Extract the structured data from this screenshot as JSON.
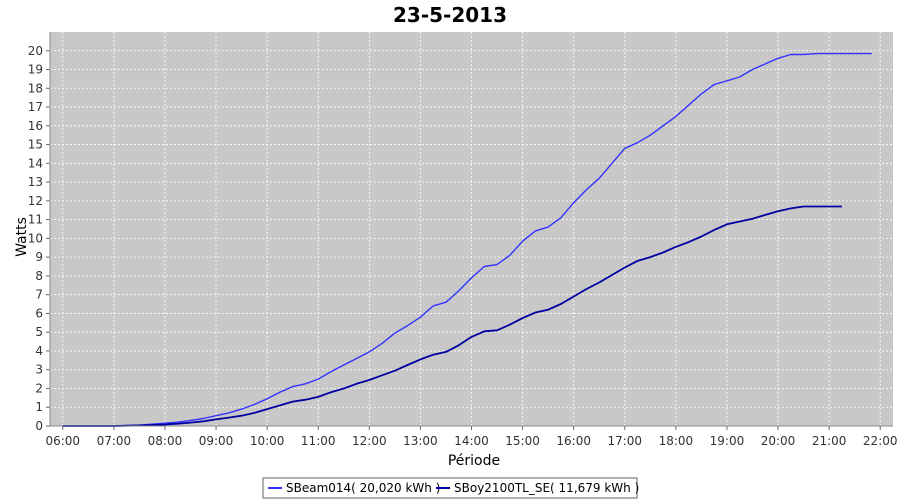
{
  "chart_data": {
    "type": "line",
    "title": "23-5-2013",
    "xlabel": "Période",
    "ylabel": "Watts",
    "ylim": [
      0,
      21
    ],
    "xlim": [
      "05:45",
      "22:15"
    ],
    "x_ticks": [
      "06:00",
      "07:00",
      "08:00",
      "09:00",
      "10:00",
      "11:00",
      "12:00",
      "13:00",
      "14:00",
      "15:00",
      "16:00",
      "17:00",
      "18:00",
      "19:00",
      "20:00",
      "21:00",
      "22:00"
    ],
    "y_ticks": [
      0,
      1,
      2,
      3,
      4,
      5,
      6,
      7,
      8,
      9,
      10,
      11,
      12,
      13,
      14,
      15,
      16,
      17,
      18,
      19,
      20
    ],
    "grid": true,
    "plot_background": "#c8c8c8",
    "legend_position": "bottom",
    "series": [
      {
        "name": "SBeam014( 20,020 kWh )",
        "color": "#3333ff",
        "x": [
          "06:00",
          "06:30",
          "07:00",
          "07:30",
          "08:00",
          "08:15",
          "08:30",
          "08:45",
          "09:00",
          "09:15",
          "09:30",
          "09:45",
          "10:00",
          "10:15",
          "10:30",
          "10:45",
          "11:00",
          "11:15",
          "11:30",
          "11:45",
          "12:00",
          "12:15",
          "12:30",
          "12:45",
          "13:00",
          "13:15",
          "13:30",
          "13:45",
          "14:00",
          "14:15",
          "14:30",
          "14:45",
          "15:00",
          "15:15",
          "15:30",
          "15:45",
          "16:00",
          "16:15",
          "16:30",
          "16:45",
          "17:00",
          "17:15",
          "17:30",
          "17:45",
          "18:00",
          "18:15",
          "18:30",
          "18:45",
          "19:00",
          "19:15",
          "19:30",
          "19:45",
          "20:00",
          "20:15",
          "20:30",
          "20:45",
          "21:00",
          "21:15",
          "21:30",
          "21:45",
          "21:50"
        ],
        "values": [
          0,
          0,
          0,
          0.05,
          0.15,
          0.2,
          0.3,
          0.4,
          0.55,
          0.7,
          0.9,
          1.15,
          1.45,
          1.8,
          2.1,
          2.25,
          2.5,
          2.9,
          3.25,
          3.6,
          3.95,
          4.4,
          4.95,
          5.35,
          5.8,
          6.4,
          6.6,
          7.2,
          7.9,
          8.5,
          8.6,
          9.1,
          9.85,
          10.4,
          10.6,
          11.1,
          11.9,
          12.6,
          13.2,
          14.0,
          14.8,
          15.1,
          15.5,
          16.0,
          16.5,
          17.1,
          17.7,
          18.2,
          18.4,
          18.6,
          19.0,
          19.3,
          19.6,
          19.8,
          19.8,
          19.85,
          19.85,
          19.85,
          19.85,
          19.85,
          19.85
        ]
      },
      {
        "name": "SBoy2100TL_SE( 11,679 kWh )",
        "color": "#0000a0",
        "x": [
          "06:00",
          "06:30",
          "07:00",
          "07:30",
          "08:00",
          "08:15",
          "08:30",
          "08:45",
          "09:00",
          "09:15",
          "09:30",
          "09:45",
          "10:00",
          "10:15",
          "10:30",
          "10:45",
          "11:00",
          "11:15",
          "11:30",
          "11:45",
          "12:00",
          "12:15",
          "12:30",
          "12:45",
          "13:00",
          "13:15",
          "13:30",
          "13:45",
          "14:00",
          "14:15",
          "14:30",
          "14:45",
          "15:00",
          "15:15",
          "15:30",
          "15:45",
          "16:00",
          "16:15",
          "16:30",
          "16:45",
          "17:00",
          "17:15",
          "17:30",
          "17:45",
          "18:00",
          "18:15",
          "18:30",
          "18:45",
          "19:00",
          "19:15",
          "19:30",
          "19:45",
          "20:00",
          "20:15",
          "20:30",
          "20:45",
          "21:00",
          "21:15"
        ],
        "values": [
          0,
          0,
          0,
          0.03,
          0.08,
          0.12,
          0.18,
          0.25,
          0.35,
          0.45,
          0.55,
          0.7,
          0.9,
          1.1,
          1.3,
          1.4,
          1.55,
          1.8,
          2.0,
          2.25,
          2.45,
          2.7,
          2.95,
          3.25,
          3.55,
          3.8,
          3.95,
          4.3,
          4.75,
          5.05,
          5.1,
          5.4,
          5.75,
          6.05,
          6.2,
          6.5,
          6.9,
          7.3,
          7.65,
          8.05,
          8.45,
          8.8,
          9.0,
          9.25,
          9.55,
          9.8,
          10.1,
          10.45,
          10.75,
          10.9,
          11.05,
          11.25,
          11.45,
          11.6,
          11.7,
          11.7,
          11.7,
          11.7
        ]
      }
    ]
  }
}
